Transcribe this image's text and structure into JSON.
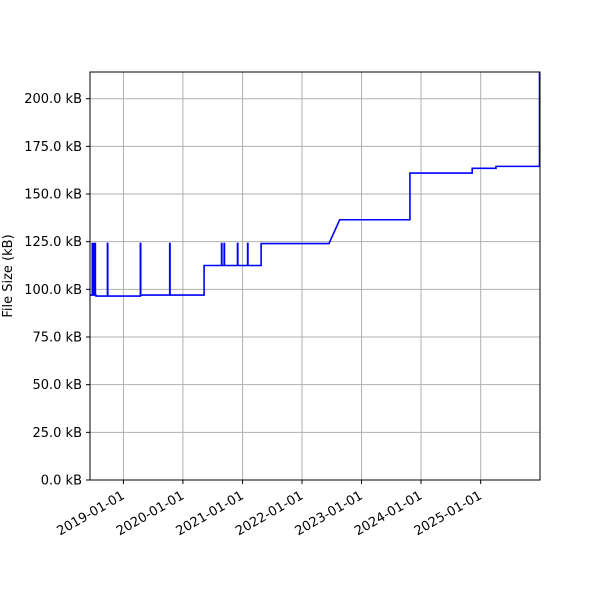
{
  "chart_data": {
    "type": "line",
    "title": "",
    "xlabel": "",
    "ylabel": "File Size (kB)",
    "grid": true,
    "x_type": "date",
    "xlim": [
      "2018-06-10",
      "2025-12-31"
    ],
    "ylim": [
      0,
      214
    ],
    "x_ticks": [
      "2019-01-01",
      "2020-01-01",
      "2021-01-01",
      "2022-01-01",
      "2023-01-01",
      "2024-01-01",
      "2025-01-01"
    ],
    "y_ticks": [
      0,
      25,
      50,
      75,
      100,
      125,
      150,
      175,
      200
    ],
    "y_tick_labels": [
      "0.0 kB",
      "25.0 kB",
      "50.0 kB",
      "75.0 kB",
      "100.0 kB",
      "125.0 kB",
      "150.0 kB",
      "175.0 kB",
      "200.0 kB"
    ],
    "colors": {
      "line": "#0000ff",
      "grid": "#b0b0b0",
      "axis": "#000000"
    },
    "series": [
      {
        "x": [
          "2018-06-10",
          "2018-06-24",
          "2018-06-24",
          "2018-06-27",
          "2018-06-27",
          "2018-07-01",
          "2018-07-01",
          "2018-07-05",
          "2018-07-05",
          "2018-07-09",
          "2018-07-09",
          "2018-07-13",
          "2018-07-13",
          "2018-07-17",
          "2018-07-17",
          "2018-09-25",
          "2018-09-25",
          "2018-09-27",
          "2018-09-27",
          "2019-04-15",
          "2019-04-15",
          "2019-04-17",
          "2019-04-17",
          "2019-10-12",
          "2019-10-12",
          "2019-10-14",
          "2019-10-14",
          "2020-05-10",
          "2020-05-10",
          "2020-08-25",
          "2020-08-25",
          "2020-08-27",
          "2020-08-27",
          "2020-09-10",
          "2020-09-10",
          "2020-09-12",
          "2020-09-12",
          "2020-12-01",
          "2020-12-01",
          "2020-12-03",
          "2020-12-03",
          "2021-02-01",
          "2021-02-01",
          "2021-02-03",
          "2021-02-03",
          "2021-04-25",
          "2021-04-25",
          "2021-04-27",
          "2021-04-27",
          "2022-06-15",
          "2022-08-20",
          "2023-10-25",
          "2023-10-25",
          "2024-11-10",
          "2024-11-10",
          "2025-04-05",
          "2025-04-05",
          "2025-12-28",
          "2025-12-28"
        ],
        "y": [
          97,
          97,
          124,
          124,
          97,
          97,
          124,
          124,
          97,
          97,
          124,
          124,
          97,
          97,
          96.5,
          96.5,
          124,
          124,
          96.5,
          96.5,
          124,
          124,
          97,
          97,
          124,
          124,
          97,
          97,
          112.5,
          112.5,
          124,
          124,
          112.5,
          112.5,
          124,
          124,
          112.5,
          112.5,
          124,
          124,
          112.5,
          112.5,
          124,
          124,
          112.5,
          112.5,
          124,
          124,
          124,
          124,
          136.5,
          136.5,
          161,
          161,
          163.5,
          163.5,
          164.5,
          164.5,
          214
        ]
      }
    ]
  }
}
